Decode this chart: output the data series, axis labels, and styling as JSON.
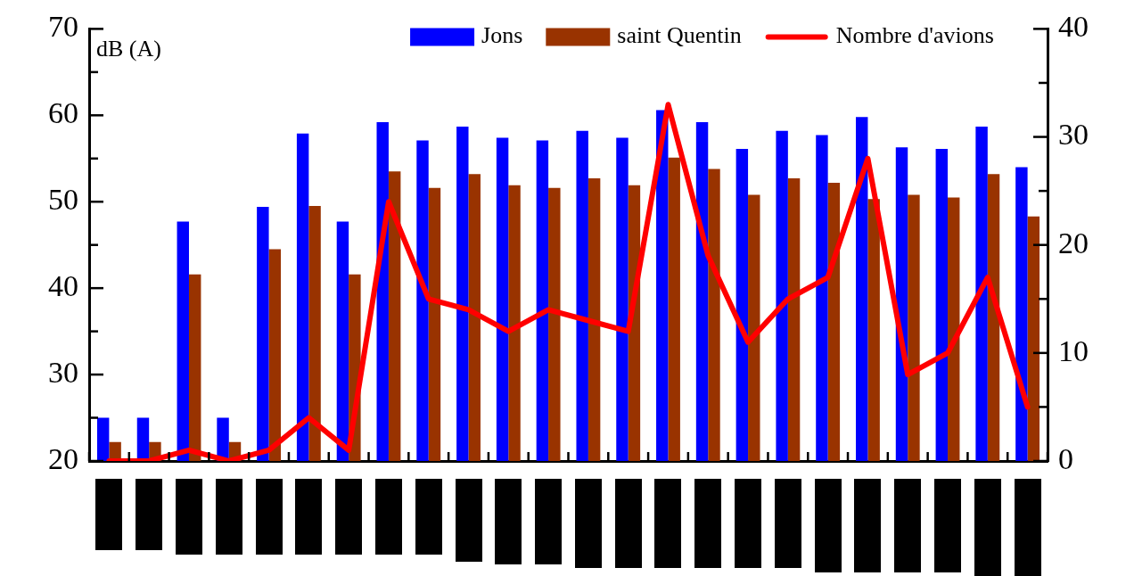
{
  "chart_data": {
    "type": "bar",
    "ylabel": "dB (A)",
    "categories": [
      null,
      null,
      null,
      null,
      null,
      null,
      null,
      null,
      null,
      null,
      null,
      null,
      null,
      null,
      null,
      null,
      null,
      null,
      null,
      null,
      null,
      null,
      null,
      null
    ],
    "series": [
      {
        "name": "Jons",
        "color": "#0000ff",
        "values": [
          25,
          25,
          47.7,
          25,
          49.4,
          57.9,
          47.7,
          59.2,
          57.1,
          58.7,
          57.4,
          57.1,
          58.2,
          57.4,
          60.6,
          59.2,
          56.1,
          58.2,
          57.7,
          59.8,
          56.3,
          56.1,
          58.7,
          54.0
        ]
      },
      {
        "name": "saint Quentin",
        "color": "#993300",
        "values": [
          22.2,
          22.2,
          41.6,
          22.2,
          44.5,
          49.5,
          41.6,
          53.5,
          51.6,
          53.2,
          51.9,
          51.6,
          52.7,
          51.9,
          55.1,
          53.8,
          50.8,
          52.7,
          52.2,
          50.3,
          50.8,
          50.5,
          53.2,
          48.3
        ]
      },
      {
        "name": "Nombre d'avions",
        "type": "line",
        "axis": "y2",
        "color": "#ff0000",
        "values": [
          0,
          0,
          1,
          0,
          1,
          4,
          1,
          24,
          15,
          14,
          12,
          14,
          13,
          12,
          33,
          19,
          11,
          15,
          17,
          28,
          8,
          10,
          17,
          5
        ]
      }
    ],
    "ylim": [
      20,
      70
    ],
    "yticks": [
      20,
      {
        "value": 25,
        "label": null
      },
      30,
      {
        "value": 35,
        "label": null
      },
      40,
      {
        "value": 45,
        "label": null
      },
      50,
      {
        "value": 55,
        "label": null
      },
      60,
      {
        "value": 65,
        "label": null
      },
      70
    ],
    "y2lim": [
      0,
      40
    ],
    "y2ticks": [
      0,
      {
        "value": 5,
        "label": null
      },
      10,
      {
        "value": 15,
        "label": null
      },
      20,
      {
        "value": 25,
        "label": null
      },
      30,
      {
        "value": 35,
        "label": null
      },
      40
    ],
    "grid": false,
    "legend": "top",
    "marker": "none",
    "line_style": "solid"
  }
}
